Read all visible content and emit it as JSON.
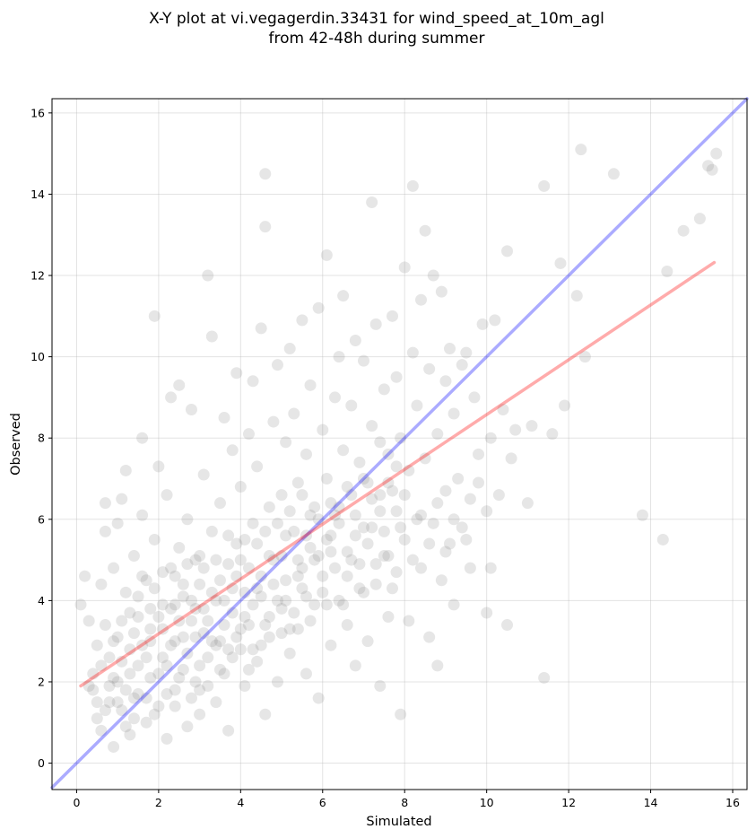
{
  "chart_data": {
    "type": "scatter",
    "title_lines": [
      "X-Y plot at vi.vegagerdin.33431 for wind_speed_at_10m_agl",
      "from 42-48h during summer"
    ],
    "xlabel": "Simulated",
    "ylabel": "Observed",
    "xlim": [
      -0.6,
      16.35
    ],
    "ylim": [
      -0.65,
      16.35
    ],
    "xticks": [
      "0",
      "2",
      "4",
      "6",
      "8",
      "10",
      "12",
      "14",
      "16"
    ],
    "yticks": [
      "0",
      "2",
      "4",
      "6",
      "8",
      "10",
      "12",
      "14",
      "16"
    ],
    "grid": true,
    "points_color": "#808080",
    "identity_line": {
      "color": "#0000ff",
      "from": [
        -0.6,
        -0.6
      ],
      "to": [
        16.35,
        16.35
      ]
    },
    "regression_line": {
      "color": "#ff0000",
      "from": [
        0.1,
        1.9
      ],
      "to": [
        15.55,
        12.32
      ]
    },
    "points": [
      [
        0.1,
        3.9
      ],
      [
        0.2,
        4.6
      ],
      [
        0.3,
        3.5
      ],
      [
        0.4,
        2.2
      ],
      [
        0.4,
        1.8
      ],
      [
        0.5,
        2.9
      ],
      [
        0.5,
        1.1
      ],
      [
        0.6,
        0.8
      ],
      [
        0.6,
        4.4
      ],
      [
        0.7,
        6.4
      ],
      [
        0.7,
        5.7
      ],
      [
        0.7,
        3.4
      ],
      [
        0.8,
        2.6
      ],
      [
        0.8,
        1.5
      ],
      [
        0.9,
        0.4
      ],
      [
        0.9,
        4.8
      ],
      [
        1.0,
        5.9
      ],
      [
        1.0,
        2.0
      ],
      [
        1.0,
        3.1
      ],
      [
        1.1,
        1.3
      ],
      [
        1.1,
        6.5
      ],
      [
        1.2,
        7.2
      ],
      [
        1.2,
        4.2
      ],
      [
        1.3,
        2.8
      ],
      [
        1.3,
        0.7
      ],
      [
        1.4,
        1.6
      ],
      [
        1.4,
        5.1
      ],
      [
        1.5,
        3.6
      ],
      [
        1.5,
        2.4
      ],
      [
        1.6,
        8.0
      ],
      [
        1.6,
        6.1
      ],
      [
        1.7,
        1.0
      ],
      [
        1.7,
        4.5
      ],
      [
        1.8,
        3.3
      ],
      [
        1.8,
        2.1
      ],
      [
        1.9,
        11.0
      ],
      [
        1.9,
        5.5
      ],
      [
        2.0,
        7.3
      ],
      [
        2.0,
        1.4
      ],
      [
        2.1,
        3.9
      ],
      [
        2.1,
        2.6
      ],
      [
        2.2,
        6.6
      ],
      [
        2.2,
        0.6
      ],
      [
        2.3,
        4.8
      ],
      [
        2.3,
        9.0
      ],
      [
        2.4,
        3.0
      ],
      [
        2.4,
        1.8
      ],
      [
        2.5,
        5.3
      ],
      [
        2.5,
        9.3
      ],
      [
        2.6,
        2.3
      ],
      [
        2.6,
        4.1
      ],
      [
        2.7,
        6.0
      ],
      [
        2.7,
        0.9
      ],
      [
        2.8,
        3.5
      ],
      [
        2.8,
        8.7
      ],
      [
        2.9,
        2.0
      ],
      [
        2.9,
        5.0
      ],
      [
        3.0,
        4.4
      ],
      [
        3.0,
        1.2
      ],
      [
        3.1,
        7.1
      ],
      [
        3.1,
        3.2
      ],
      [
        3.2,
        12.0
      ],
      [
        3.2,
        2.6
      ],
      [
        3.3,
        5.7
      ],
      [
        3.3,
        10.5
      ],
      [
        3.4,
        4.0
      ],
      [
        3.4,
        1.5
      ],
      [
        3.5,
        6.4
      ],
      [
        3.5,
        3.0
      ],
      [
        3.6,
        8.5
      ],
      [
        3.6,
        2.2
      ],
      [
        3.7,
        4.9
      ],
      [
        3.7,
        0.8
      ],
      [
        3.8,
        7.7
      ],
      [
        3.8,
        3.7
      ],
      [
        3.9,
        5.4
      ],
      [
        3.9,
        9.6
      ],
      [
        4.0,
        2.8
      ],
      [
        4.0,
        6.8
      ],
      [
        4.1,
        4.2
      ],
      [
        4.1,
        1.9
      ],
      [
        4.2,
        8.1
      ],
      [
        4.2,
        3.4
      ],
      [
        4.3,
        5.9
      ],
      [
        4.3,
        9.4
      ],
      [
        4.4,
        2.5
      ],
      [
        4.4,
        7.3
      ],
      [
        4.5,
        4.6
      ],
      [
        4.5,
        10.7
      ],
      [
        4.6,
        1.2
      ],
      [
        4.6,
        14.5
      ],
      [
        4.6,
        13.2
      ],
      [
        4.7,
        6.3
      ],
      [
        4.7,
        3.1
      ],
      [
        4.8,
        8.4
      ],
      [
        4.8,
        5.0
      ],
      [
        4.9,
        2.0
      ],
      [
        4.9,
        9.8
      ],
      [
        5.0,
        6.6
      ],
      [
        5.0,
        3.8
      ],
      [
        5.1,
        7.9
      ],
      [
        5.1,
        4.5
      ],
      [
        5.2,
        10.2
      ],
      [
        5.2,
        2.7
      ],
      [
        5.3,
        5.7
      ],
      [
        5.3,
        8.6
      ],
      [
        5.4,
        3.3
      ],
      [
        5.4,
        6.9
      ],
      [
        5.5,
        10.9
      ],
      [
        5.5,
        4.8
      ],
      [
        5.6,
        2.2
      ],
      [
        5.6,
        7.6
      ],
      [
        5.7,
        5.3
      ],
      [
        5.7,
        9.3
      ],
      [
        5.8,
        3.9
      ],
      [
        5.8,
        6.3
      ],
      [
        5.9,
        11.2
      ],
      [
        5.9,
        1.6
      ],
      [
        6.0,
        8.2
      ],
      [
        6.0,
        4.6
      ],
      [
        6.1,
        12.5
      ],
      [
        6.1,
        7.0
      ],
      [
        6.2,
        5.6
      ],
      [
        6.2,
        2.9
      ],
      [
        6.3,
        9.0
      ],
      [
        6.3,
        6.1
      ],
      [
        6.4,
        10.0
      ],
      [
        6.4,
        4.0
      ],
      [
        6.5,
        7.7
      ],
      [
        6.5,
        11.5
      ],
      [
        6.6,
        5.2
      ],
      [
        6.6,
        3.4
      ],
      [
        6.7,
        8.8
      ],
      [
        6.7,
        6.6
      ],
      [
        6.8,
        10.4
      ],
      [
        6.8,
        2.4
      ],
      [
        6.9,
        4.9
      ],
      [
        6.9,
        7.4
      ],
      [
        7.0,
        9.9
      ],
      [
        7.0,
        5.8
      ],
      [
        7.1,
        3.0
      ],
      [
        7.1,
        6.9
      ],
      [
        7.2,
        13.8
      ],
      [
        7.2,
        8.3
      ],
      [
        7.3,
        4.4
      ],
      [
        7.3,
        10.8
      ],
      [
        7.4,
        6.2
      ],
      [
        7.4,
        1.9
      ],
      [
        7.5,
        9.2
      ],
      [
        7.5,
        5.1
      ],
      [
        7.6,
        7.6
      ],
      [
        7.6,
        3.6
      ],
      [
        7.7,
        11.0
      ],
      [
        7.7,
        6.7
      ],
      [
        7.8,
        4.7
      ],
      [
        7.8,
        9.5
      ],
      [
        7.9,
        1.2
      ],
      [
        7.9,
        8.0
      ],
      [
        8.0,
        12.2
      ],
      [
        8.0,
        5.5
      ],
      [
        8.1,
        7.2
      ],
      [
        8.1,
        3.5
      ],
      [
        8.2,
        14.2
      ],
      [
        8.2,
        10.1
      ],
      [
        8.3,
        6.0
      ],
      [
        8.3,
        8.8
      ],
      [
        8.4,
        11.4
      ],
      [
        8.4,
        4.8
      ],
      [
        8.5,
        13.1
      ],
      [
        8.5,
        7.5
      ],
      [
        8.6,
        3.1
      ],
      [
        8.6,
        9.7
      ],
      [
        8.7,
        5.9
      ],
      [
        8.7,
        12.0
      ],
      [
        8.8,
        2.4
      ],
      [
        8.8,
        8.1
      ],
      [
        8.9,
        11.6
      ],
      [
        8.9,
        4.5
      ],
      [
        9.0,
        6.7
      ],
      [
        9.0,
        9.4
      ],
      [
        9.1,
        10.2
      ],
      [
        9.1,
        5.4
      ],
      [
        9.2,
        3.9
      ],
      [
        9.2,
        8.6
      ],
      [
        9.3,
        7.0
      ],
      [
        9.4,
        9.8
      ],
      [
        9.4,
        5.8
      ],
      [
        9.5,
        10.1
      ],
      [
        9.6,
        6.5
      ],
      [
        9.6,
        4.8
      ],
      [
        9.7,
        9.0
      ],
      [
        9.8,
        7.6
      ],
      [
        9.9,
        10.8
      ],
      [
        10.0,
        6.2
      ],
      [
        10.0,
        3.7
      ],
      [
        10.1,
        4.8
      ],
      [
        10.1,
        8.0
      ],
      [
        10.2,
        10.9
      ],
      [
        10.3,
        6.6
      ],
      [
        10.4,
        8.7
      ],
      [
        10.5,
        12.6
      ],
      [
        10.5,
        3.4
      ],
      [
        10.6,
        7.5
      ],
      [
        10.7,
        8.2
      ],
      [
        11.0,
        6.4
      ],
      [
        11.1,
        8.3
      ],
      [
        11.4,
        14.2
      ],
      [
        11.4,
        2.1
      ],
      [
        11.6,
        8.1
      ],
      [
        11.8,
        12.3
      ],
      [
        11.9,
        8.8
      ],
      [
        12.2,
        11.5
      ],
      [
        12.3,
        15.1
      ],
      [
        12.4,
        10.0
      ],
      [
        13.1,
        14.5
      ],
      [
        13.8,
        6.1
      ],
      [
        14.3,
        5.5
      ],
      [
        14.4,
        12.1
      ],
      [
        14.8,
        13.1
      ],
      [
        15.2,
        13.4
      ],
      [
        15.4,
        14.7
      ],
      [
        15.5,
        14.6
      ],
      [
        15.6,
        15.0
      ],
      [
        0.7,
        1.3
      ],
      [
        0.9,
        2.1
      ],
      [
        1.1,
        2.5
      ],
      [
        1.2,
        1.8
      ],
      [
        1.3,
        3.7
      ],
      [
        1.4,
        1.1
      ],
      [
        1.5,
        4.1
      ],
      [
        1.6,
        2.9
      ],
      [
        1.7,
        1.6
      ],
      [
        1.8,
        3.0
      ],
      [
        1.9,
        4.3
      ],
      [
        2.0,
        2.2
      ],
      [
        2.1,
        3.3
      ],
      [
        2.1,
        4.7
      ],
      [
        2.2,
        1.7
      ],
      [
        2.3,
        2.9
      ],
      [
        2.4,
        3.9
      ],
      [
        2.4,
        4.6
      ],
      [
        2.5,
        2.1
      ],
      [
        2.5,
        3.5
      ],
      [
        2.6,
        4.4
      ],
      [
        2.7,
        2.7
      ],
      [
        2.8,
        1.6
      ],
      [
        2.8,
        4.0
      ],
      [
        2.9,
        3.1
      ],
      [
        3.0,
        2.4
      ],
      [
        3.0,
        5.1
      ],
      [
        3.1,
        3.8
      ],
      [
        3.2,
        1.9
      ],
      [
        3.3,
        4.2
      ],
      [
        3.3,
        3.0
      ],
      [
        3.4,
        5.0
      ],
      [
        3.5,
        2.3
      ],
      [
        3.5,
        4.5
      ],
      [
        3.6,
        3.4
      ],
      [
        3.7,
        5.6
      ],
      [
        3.8,
        2.6
      ],
      [
        3.8,
        4.3
      ],
      [
        3.9,
        3.1
      ],
      [
        4.0,
        5.0
      ],
      [
        4.1,
        3.6
      ],
      [
        4.2,
        2.3
      ],
      [
        4.2,
        4.8
      ],
      [
        4.3,
        3.9
      ],
      [
        4.4,
        5.4
      ],
      [
        4.5,
        2.9
      ],
      [
        4.5,
        4.1
      ],
      [
        4.6,
        5.7
      ],
      [
        4.7,
        3.6
      ],
      [
        4.8,
        4.4
      ],
      [
        4.9,
        5.9
      ],
      [
        5.0,
        3.2
      ],
      [
        5.0,
        5.1
      ],
      [
        5.1,
        4.0
      ],
      [
        5.2,
        6.2
      ],
      [
        5.3,
        3.7
      ],
      [
        5.4,
        5.0
      ],
      [
        5.5,
        4.3
      ],
      [
        5.5,
        6.6
      ],
      [
        5.6,
        5.6
      ],
      [
        5.7,
        3.5
      ],
      [
        5.8,
        5.0
      ],
      [
        5.9,
        6.0
      ],
      [
        6.0,
        4.2
      ],
      [
        6.1,
        5.5
      ],
      [
        6.2,
        6.4
      ],
      [
        6.3,
        4.8
      ],
      [
        6.4,
        5.9
      ],
      [
        6.5,
        3.9
      ],
      [
        6.6,
        6.8
      ],
      [
        6.7,
        5.0
      ],
      [
        6.8,
        6.1
      ],
      [
        6.9,
        4.3
      ],
      [
        7.0,
        7.0
      ],
      [
        7.1,
        5.4
      ],
      [
        7.2,
        6.5
      ],
      [
        7.3,
        4.9
      ],
      [
        7.4,
        7.9
      ],
      [
        7.5,
        5.7
      ],
      [
        7.6,
        6.9
      ],
      [
        7.7,
        4.3
      ],
      [
        7.8,
        7.3
      ],
      [
        7.9,
        5.8
      ],
      [
        8.0,
        6.6
      ],
      [
        0.3,
        1.9
      ],
      [
        0.5,
        1.5
      ],
      [
        0.6,
        2.4
      ],
      [
        0.8,
        1.9
      ],
      [
        0.9,
        3.0
      ],
      [
        1.0,
        1.5
      ],
      [
        1.1,
        3.5
      ],
      [
        1.2,
        0.9
      ],
      [
        1.3,
        2.2
      ],
      [
        1.4,
        3.2
      ],
      [
        1.5,
        1.7
      ],
      [
        1.6,
        4.6
      ],
      [
        1.7,
        2.6
      ],
      [
        1.8,
        3.8
      ],
      [
        1.9,
        1.2
      ],
      [
        2.0,
        3.6
      ],
      [
        2.2,
        2.4
      ],
      [
        2.3,
        3.8
      ],
      [
        2.4,
        1.4
      ],
      [
        2.6,
        3.1
      ],
      [
        2.7,
        4.9
      ],
      [
        2.9,
        3.8
      ],
      [
        3.0,
        1.8
      ],
      [
        3.1,
        4.8
      ],
      [
        3.2,
        3.5
      ],
      [
        3.4,
        2.9
      ],
      [
        3.6,
        4.0
      ],
      [
        3.7,
        2.8
      ],
      [
        3.9,
        4.6
      ],
      [
        4.0,
        3.3
      ],
      [
        4.1,
        5.5
      ],
      [
        4.3,
        2.8
      ],
      [
        4.4,
        4.3
      ],
      [
        4.6,
        3.4
      ],
      [
        4.7,
        5.1
      ],
      [
        4.9,
        4.0
      ],
      [
        5.1,
        5.6
      ],
      [
        5.2,
        3.3
      ],
      [
        5.4,
        4.6
      ],
      [
        5.6,
        4.1
      ],
      [
        5.7,
        6.1
      ],
      [
        5.9,
        5.1
      ],
      [
        6.1,
        3.9
      ],
      [
        6.2,
        5.2
      ],
      [
        6.4,
        6.3
      ],
      [
        6.6,
        4.6
      ],
      [
        6.8,
        5.6
      ],
      [
        7.0,
        4.2
      ],
      [
        7.2,
        5.8
      ],
      [
        7.4,
        6.6
      ],
      [
        7.6,
        5.1
      ],
      [
        7.8,
        6.2
      ],
      [
        8.2,
        5.0
      ],
      [
        8.4,
        6.1
      ],
      [
        8.6,
        5.4
      ],
      [
        8.8,
        6.4
      ],
      [
        9.0,
        5.2
      ],
      [
        9.2,
        6.0
      ],
      [
        9.5,
        5.5
      ],
      [
        9.8,
        6.9
      ]
    ]
  }
}
